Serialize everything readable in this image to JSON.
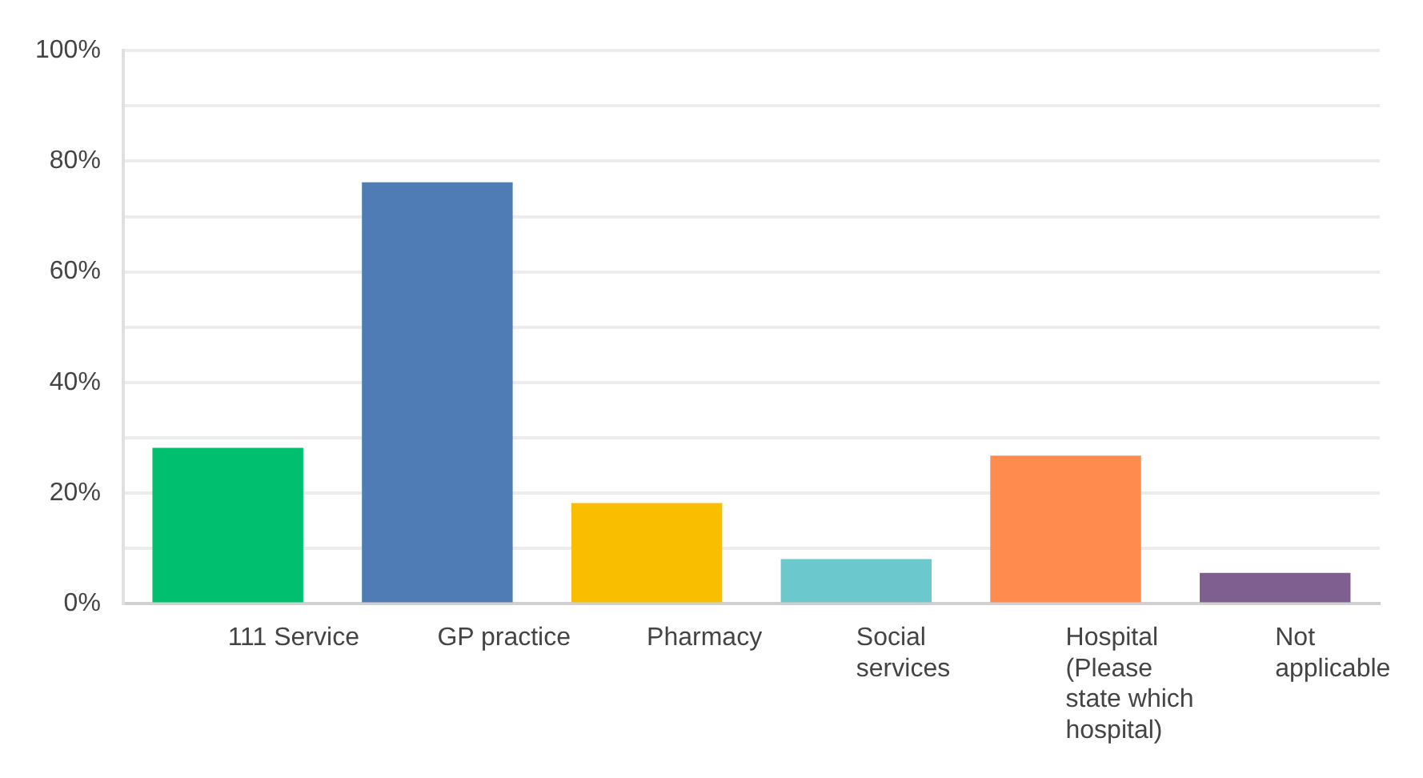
{
  "chart_data": {
    "type": "bar",
    "categories": [
      "111 Service",
      "GP practice",
      "Pharmacy",
      "Social services",
      "Hospital (Please state which hospital)",
      "Not applicable"
    ],
    "values": [
      28.2,
      76.2,
      18.2,
      8.1,
      26.8,
      5.6
    ],
    "colors": [
      "#00bf6f",
      "#507cb6",
      "#f9be00",
      "#6bc8cd",
      "#ff8b4f",
      "#7f5f90"
    ],
    "ylim": [
      0,
      100
    ],
    "yticks": [
      {
        "value": 0,
        "label": "0%"
      },
      {
        "value": 10,
        "label": null
      },
      {
        "value": 20,
        "label": "20%"
      },
      {
        "value": 30,
        "label": null
      },
      {
        "value": 40,
        "label": "40%"
      },
      {
        "value": 50,
        "label": null
      },
      {
        "value": 60,
        "label": "60%"
      },
      {
        "value": 70,
        "label": null
      },
      {
        "value": 80,
        "label": "80%"
      },
      {
        "value": 90,
        "label": null
      },
      {
        "value": 100,
        "label": "100%"
      }
    ],
    "grid": "y"
  }
}
